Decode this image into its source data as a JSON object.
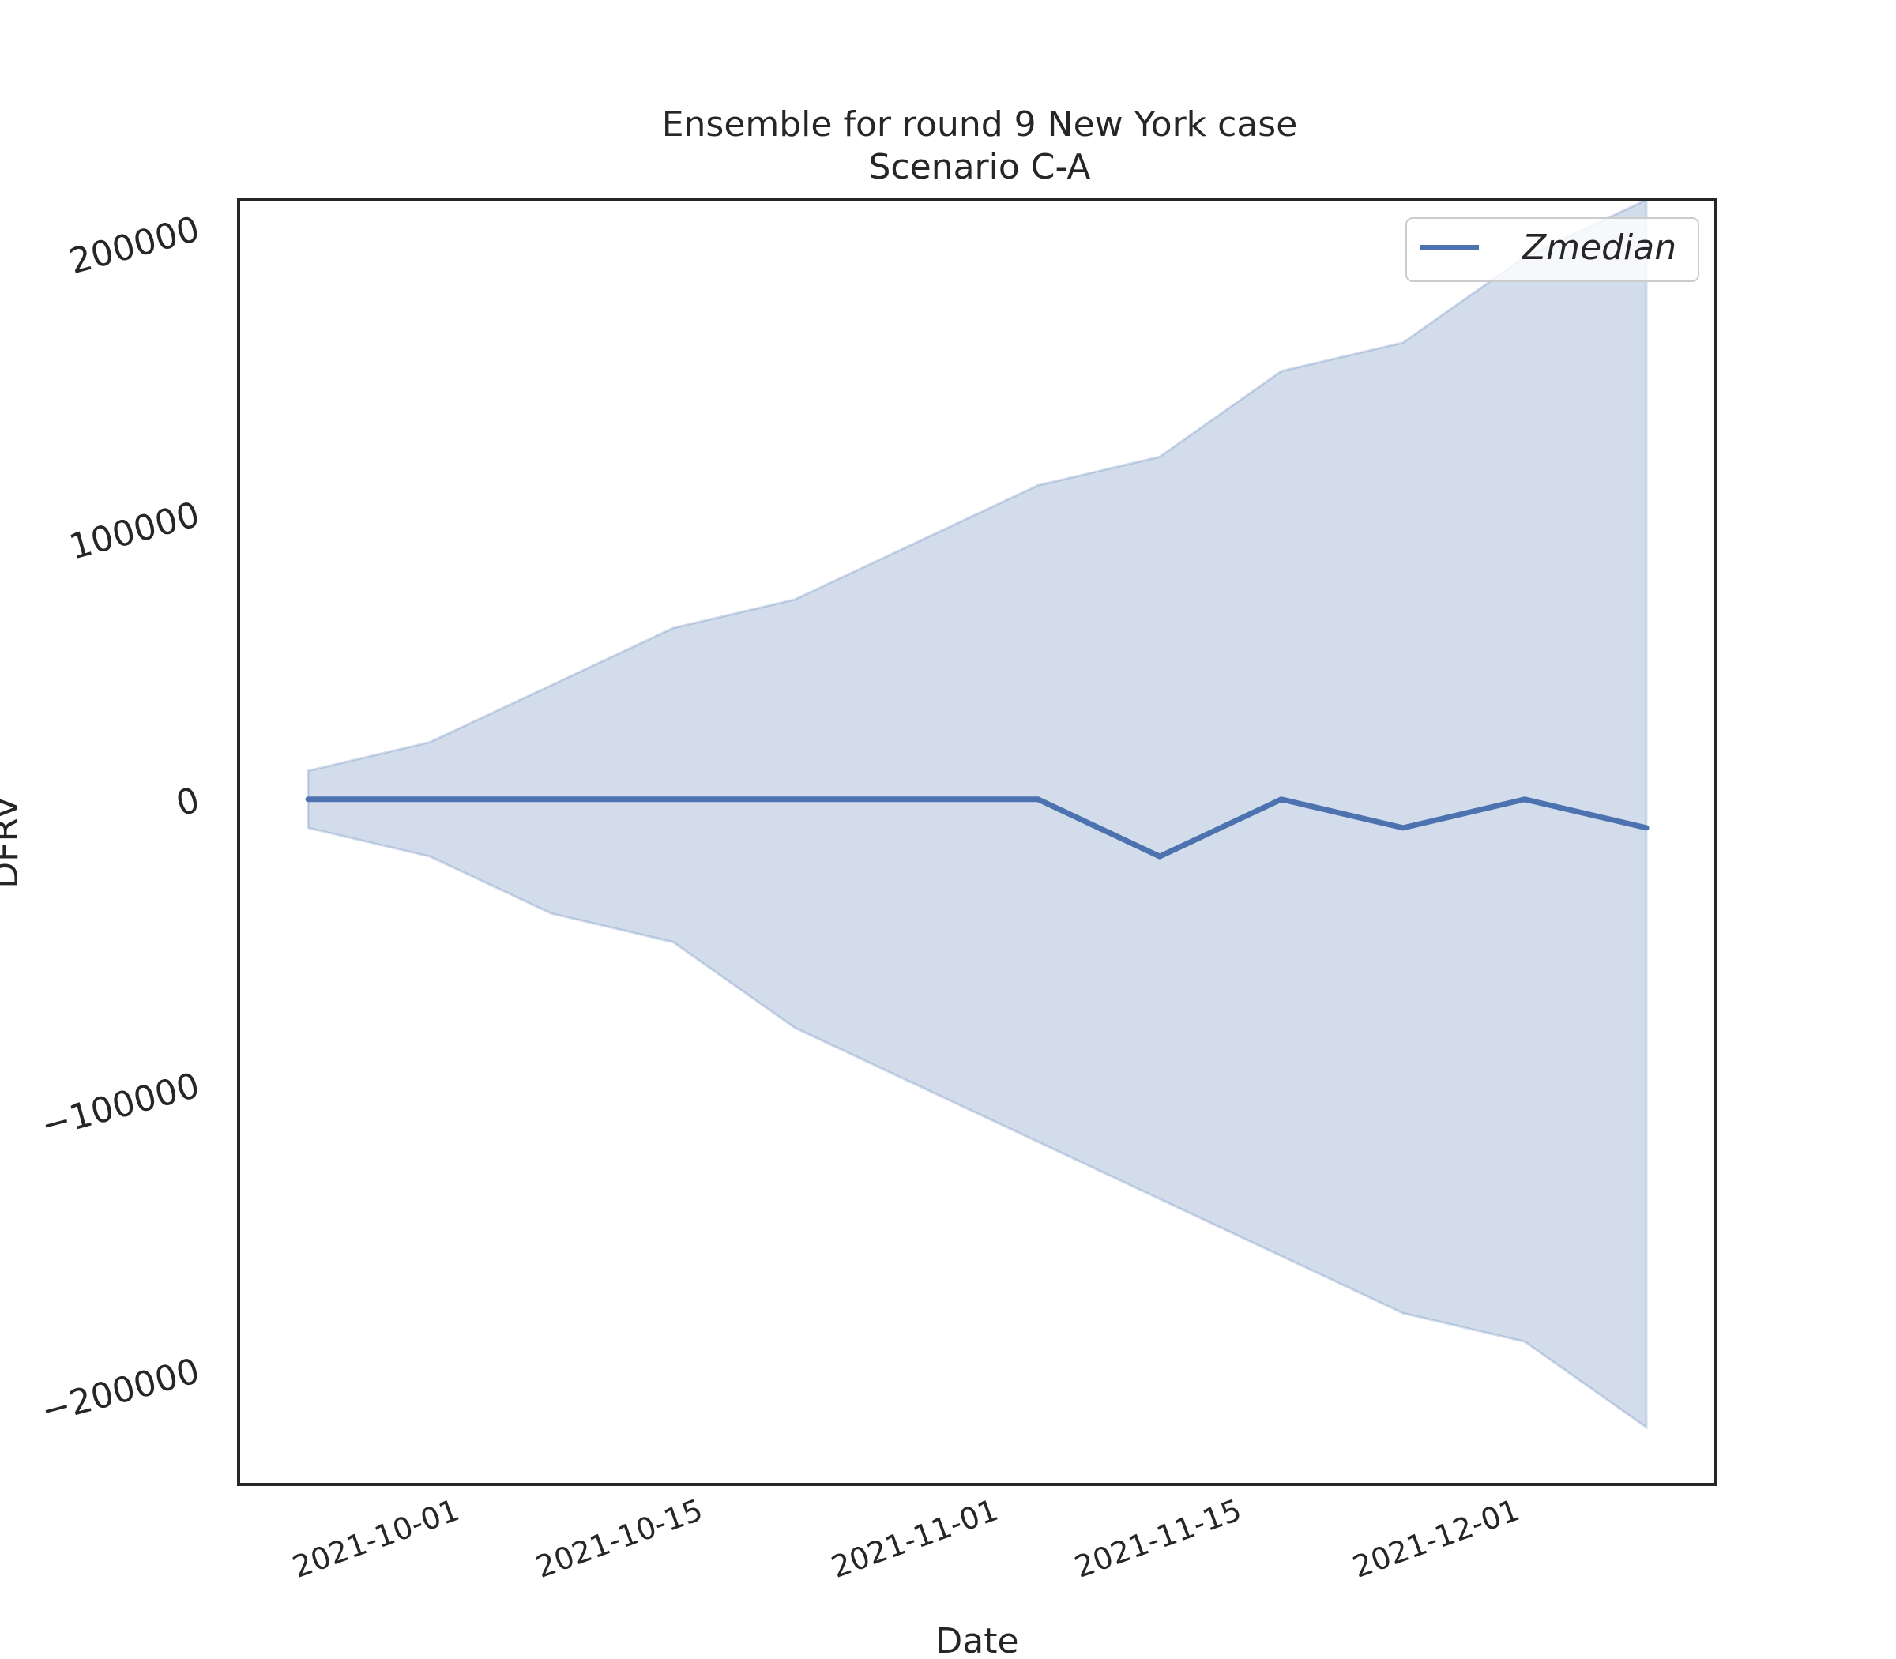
{
  "chart_data": {
    "type": "line",
    "title": "Ensemble for round 9 New York case",
    "subtitle": "Scenario C-A",
    "xlabel": "Date",
    "ylabel": "DFRV",
    "x": [
      "2021-09-23",
      "2021-09-30",
      "2021-10-07",
      "2021-10-14",
      "2021-10-21",
      "2021-10-28",
      "2021-11-04",
      "2021-11-11",
      "2021-11-18",
      "2021-11-25",
      "2021-12-02",
      "2021-12-09"
    ],
    "series": [
      {
        "name": "Zmedian",
        "color": "#4c72b0",
        "values": [
          0,
          0,
          0,
          0,
          0,
          0,
          0,
          -20000,
          0,
          -10000,
          0,
          -10000
        ]
      }
    ],
    "band": {
      "color": "#4c72b0",
      "upper": [
        10000,
        20000,
        40000,
        60000,
        70000,
        90000,
        110000,
        120000,
        150000,
        160000,
        190000,
        210000
      ],
      "lower": [
        -10000,
        -20000,
        -40000,
        -50000,
        -80000,
        -100000,
        -120000,
        -140000,
        -160000,
        -180000,
        -190000,
        -220000
      ]
    },
    "yticks": [
      -200000,
      -100000,
      0,
      100000,
      200000
    ],
    "ytick_labels": [
      "−200000",
      "−100000",
      "0",
      "100000",
      "200000"
    ],
    "xticks": [
      "2021-10-01",
      "2021-10-15",
      "2021-11-01",
      "2021-11-15",
      "2021-12-01"
    ],
    "ylim": [
      -240000,
      210000
    ],
    "xlim": [
      "2021-09-19",
      "2021-12-13"
    ],
    "grid": false,
    "legend_position": "top-right"
  }
}
